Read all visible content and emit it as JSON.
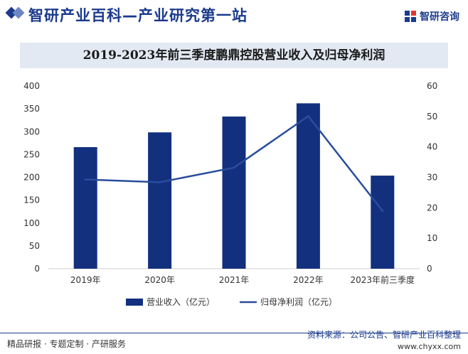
{
  "header": {
    "site_title": "智研产业百科—产业研究第一站",
    "logo_text": "智研咨询",
    "accent_color": "#1b3a8c"
  },
  "chart_data": {
    "type": "bar",
    "title": "2019-2023年前三季度鹏鼎控股营业收入及归母净利润",
    "categories": [
      "2019年",
      "2020年",
      "2021年",
      "2022年",
      "2023年前三季度"
    ],
    "series": [
      {
        "name": "营业收入（亿元）",
        "type": "bar",
        "axis": "left",
        "color": "#13307f",
        "values": [
          266.2,
          298.5,
          333.2,
          362.1,
          203.8
        ]
      },
      {
        "name": "归母净利润（亿元）",
        "type": "line",
        "axis": "right",
        "color": "#2a4d9c",
        "values": [
          29.3,
          28.4,
          33.2,
          50.1,
          19.0
        ]
      }
    ],
    "y_left": {
      "min": 0,
      "max": 400,
      "ticks": [
        0,
        50,
        100,
        150,
        200,
        250,
        300,
        350,
        400
      ]
    },
    "y_right": {
      "min": 0,
      "max": 60,
      "ticks": [
        0,
        10,
        20,
        30,
        40,
        50,
        60
      ]
    },
    "grid": false,
    "legend_position": "bottom-center"
  },
  "footer": {
    "left_text": "精品研报 · 专题定制 · 产研服务",
    "source_text": "资料来源：公司公告、智研产业百科整理",
    "url_text": "www.chyxx.com"
  }
}
